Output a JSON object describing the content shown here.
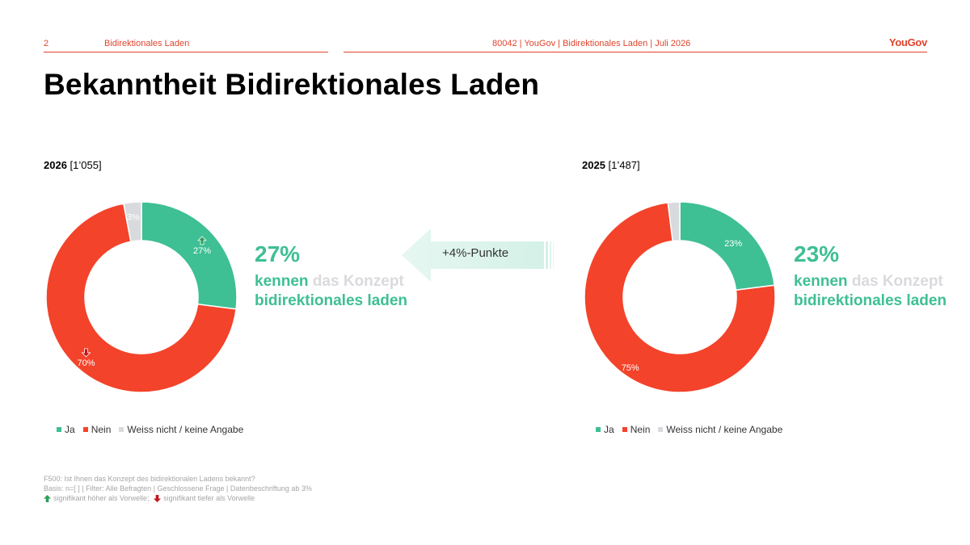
{
  "header": {
    "page_number": "2",
    "section": "Bidirektionales Laden",
    "project": "80042 | YouGov | Bidirektionales Laden | Juli 2026",
    "logo": "YouGov"
  },
  "title": "Bekanntheit Bidirektionales Laden",
  "colors": {
    "ja": "#3ebf94",
    "nein": "#f3432a",
    "weiss_nicht": "#d9dadd",
    "accent": "#e0442c"
  },
  "chart_data": [
    {
      "type": "pie",
      "title_year": "2026",
      "title_n": "[1’055]",
      "categories": [
        "Ja",
        "Nein",
        "Weiss nicht / keine Angabe"
      ],
      "values": [
        27,
        70,
        3
      ],
      "labels": [
        "27%",
        "70%",
        "3%"
      ],
      "significance": [
        "up",
        "down",
        null
      ],
      "legend": "bottom",
      "headline_pct": "27%",
      "headline_text": [
        "kennen",
        "das Konzept",
        "bidirektionales laden"
      ]
    },
    {
      "type": "pie",
      "title_year": "2025",
      "title_n": "[1’487]",
      "categories": [
        "Ja",
        "Nein",
        "Weiss nicht / keine Angabe"
      ],
      "values": [
        23,
        75,
        2
      ],
      "labels": [
        "23%",
        "75%",
        ""
      ],
      "significance": [
        null,
        null,
        null
      ],
      "legend": "bottom",
      "headline_pct": "23%",
      "headline_text": [
        "kennen",
        "das Konzept",
        "bidirektionales laden"
      ]
    }
  ],
  "change_arrow": {
    "label": "+4%-Punkte"
  },
  "footnote": {
    "question": "F500: Ist Ihnen das Konzept des bidirektionalen Ladens bekannt?",
    "basis": "Basis: n=[ ] | Filter: Alle Befragten | Geschlossene Frage | Datenbeschriftung ab 3%",
    "sig_up": "signifikant höher als Vorwelle;",
    "sig_down": "signifikant tiefer als Vorwelle"
  }
}
